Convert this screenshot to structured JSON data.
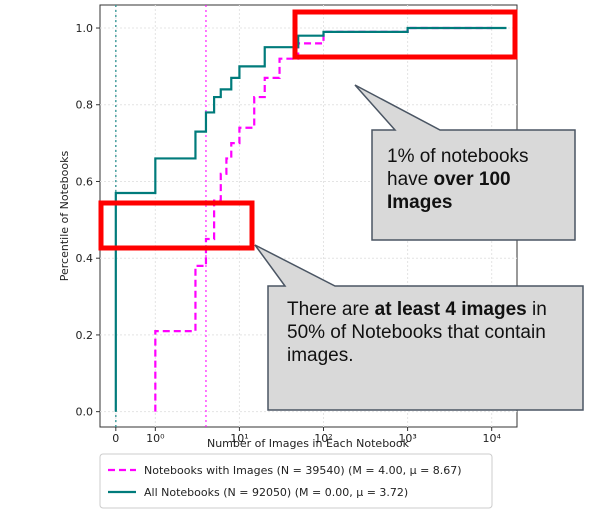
{
  "chart_data": {
    "type": "step",
    "xlabel": "Number of Images in Each Notebook",
    "ylabel": "Percentile of Notebooks",
    "xscale": "symlog",
    "xlim": [
      -0.4,
      20000
    ],
    "ylim": [
      -0.04,
      1.06
    ],
    "xticks": [
      0,
      {
        "value": 1,
        "label": "10⁰"
      },
      {
        "value": 10,
        "label": "10¹"
      },
      {
        "value": 100,
        "label": "10²"
      },
      {
        "value": 1000,
        "label": "10³"
      },
      {
        "value": 10000,
        "label": "10⁴"
      }
    ],
    "yticks": [
      {
        "value": 0,
        "label": "0.0"
      },
      0.2,
      0.4,
      0.6,
      0.8,
      {
        "value": 1,
        "label": "1.0"
      }
    ],
    "grid": true,
    "series": [
      {
        "name": "Notebooks with Images (N = 39540) (M = 4.00, μ = 8.67)",
        "color": "#ff00ff",
        "dash": true,
        "median": 4,
        "x": [
          1,
          3,
          4,
          5,
          6,
          7,
          8,
          10,
          15,
          20,
          30,
          50,
          100,
          1000,
          10000
        ],
        "values": [
          0.21,
          0.38,
          0.45,
          0.55,
          0.62,
          0.66,
          0.7,
          0.74,
          0.82,
          0.87,
          0.92,
          0.96,
          0.99,
          1.0,
          1.0
        ]
      },
      {
        "name": "All Notebooks (N = 92050) (M = 0.00, μ = 3.72)",
        "color": "#007b7b",
        "dash": false,
        "median": 0,
        "x": [
          0,
          1,
          3,
          4,
          5,
          6,
          8,
          10,
          20,
          50,
          100,
          1000,
          15000
        ],
        "values": [
          0.57,
          0.66,
          0.73,
          0.78,
          0.82,
          0.84,
          0.87,
          0.9,
          0.95,
          0.98,
          0.99,
          1.0,
          1.0
        ]
      }
    ],
    "annotations": [
      {
        "text": "1% of notebooks have ",
        "bold": "over 100 Images"
      },
      {
        "text": "There are ",
        "bold": "at least 4 images",
        "text_after": " in 50% of Notebooks that contain images."
      }
    ]
  }
}
